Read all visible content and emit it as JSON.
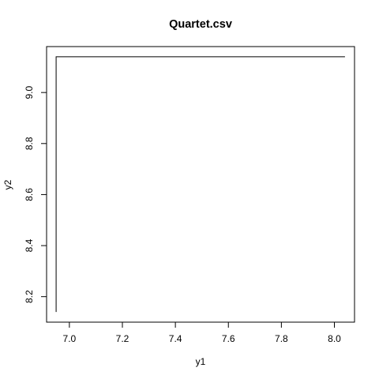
{
  "chart_data": {
    "type": "line",
    "title": "Quartet.csv",
    "xlabel": "y1",
    "ylabel": "y2",
    "xlim": [
      6.914,
      8.076
    ],
    "ylim": [
      8.1,
      9.18
    ],
    "x_ticks": [
      7.0,
      7.2,
      7.4,
      7.6,
      7.8,
      8.0
    ],
    "x_tick_labels": [
      "7.0",
      "7.2",
      "7.4",
      "7.6",
      "7.8",
      "8.0"
    ],
    "y_ticks": [
      8.2,
      8.4,
      8.6,
      8.8,
      9.0
    ],
    "y_tick_labels": [
      "8.2",
      "8.4",
      "8.6",
      "8.8",
      "9.0"
    ],
    "grid": false,
    "series": [
      {
        "line_type": "step",
        "color": "#000000",
        "points": [
          {
            "x": 6.95,
            "y": 8.14
          },
          {
            "x": 6.95,
            "y": 9.14
          },
          {
            "x": 8.04,
            "y": 9.14
          }
        ]
      }
    ]
  }
}
